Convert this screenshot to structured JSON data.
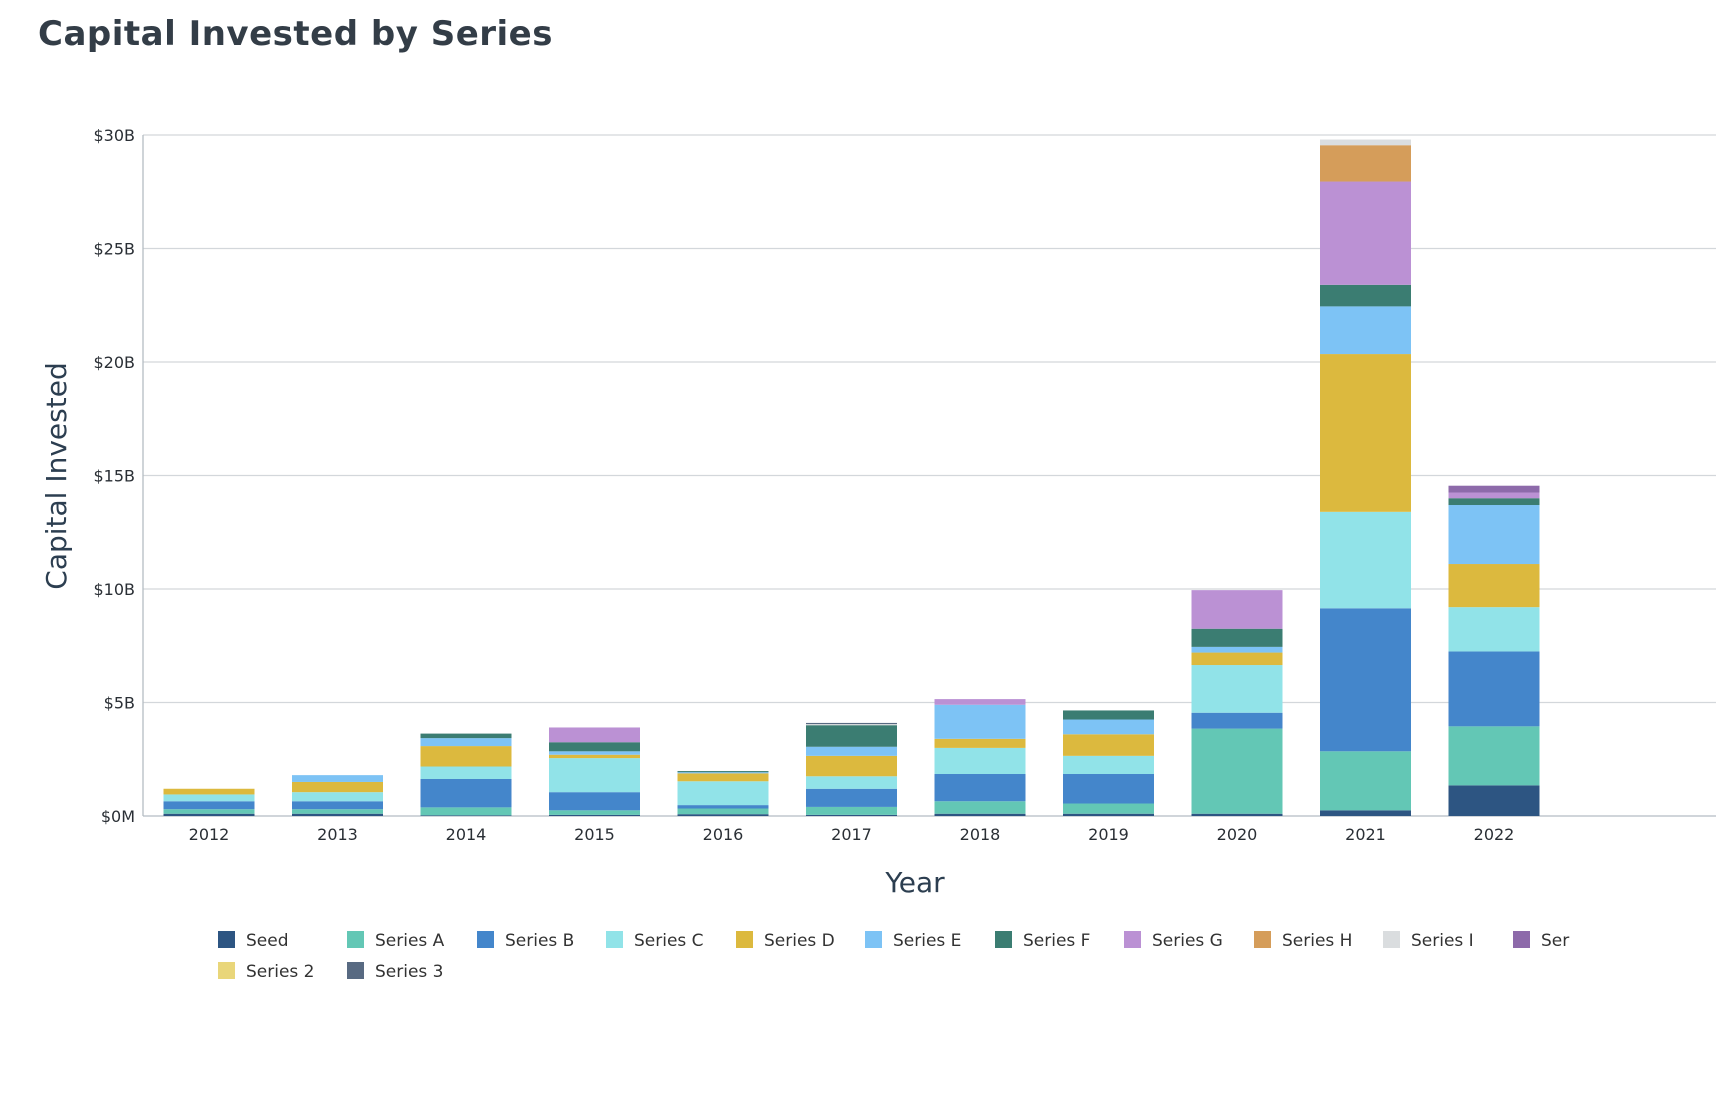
{
  "title": "Capital Invested by Series",
  "chart_data": {
    "type": "bar",
    "stacked": true,
    "title": "Capital Invested by Series",
    "xlabel": "Year",
    "ylabel": "Capital Invested",
    "ylim": [
      0,
      30
    ],
    "y_unit": "billions USD",
    "yticks": [
      {
        "value": 0,
        "label": "$0M"
      },
      {
        "value": 5,
        "label": "$5B"
      },
      {
        "value": 10,
        "label": "$10B"
      },
      {
        "value": 15,
        "label": "$15B"
      },
      {
        "value": 20,
        "label": "$20B"
      },
      {
        "value": 25,
        "label": "$25B"
      },
      {
        "value": 30,
        "label": "$30B"
      }
    ],
    "grid": true,
    "legend_position": "bottom",
    "categories": [
      "2012",
      "2013",
      "2014",
      "2015",
      "2016",
      "2017",
      "2018",
      "2019",
      "2020",
      "2021",
      "2022"
    ],
    "series": [
      {
        "name": "Seed",
        "color": "#2d5582",
        "values": [
          0.1,
          0.1,
          0.03,
          0.05,
          0.08,
          0.05,
          0.1,
          0.1,
          0.1,
          0.25,
          1.35
        ]
      },
      {
        "name": "Series A",
        "color": "#63c7b5",
        "values": [
          0.2,
          0.2,
          0.35,
          0.2,
          0.25,
          0.35,
          0.55,
          0.45,
          3.75,
          2.6,
          2.6
        ]
      },
      {
        "name": "Series B",
        "color": "#4486cb",
        "values": [
          0.35,
          0.35,
          1.25,
          0.8,
          0.15,
          0.8,
          1.2,
          1.3,
          0.7,
          6.3,
          3.3
        ]
      },
      {
        "name": "Series C",
        "color": "#91e3e8",
        "values": [
          0.3,
          0.4,
          0.55,
          1.5,
          1.05,
          0.55,
          1.15,
          0.8,
          2.1,
          4.25,
          1.95
        ]
      },
      {
        "name": "Series D",
        "color": "#dcb93e",
        "values": [
          0.25,
          0.45,
          0.9,
          0.15,
          0.35,
          0.9,
          0.4,
          0.95,
          0.55,
          6.95,
          1.9
        ]
      },
      {
        "name": "Series E",
        "color": "#7dc3f5",
        "values": [
          0.0,
          0.3,
          0.35,
          0.15,
          0.05,
          0.4,
          1.5,
          0.65,
          0.25,
          2.1,
          2.6
        ]
      },
      {
        "name": "Series F",
        "color": "#3b7d72",
        "values": [
          0.0,
          0.0,
          0.2,
          0.4,
          0.05,
          0.95,
          0.0,
          0.4,
          0.8,
          0.95,
          0.3
        ]
      },
      {
        "name": "Series G",
        "color": "#bb91d4",
        "values": [
          0.0,
          0.0,
          0.0,
          0.65,
          0.0,
          0.0,
          0.25,
          0.0,
          1.7,
          4.55,
          0.25
        ]
      },
      {
        "name": "Series H",
        "color": "#d59d5a",
        "values": [
          0.0,
          0.0,
          0.0,
          0.0,
          0.0,
          0.0,
          0.0,
          0.0,
          0.0,
          1.6,
          0.0
        ]
      },
      {
        "name": "Series I",
        "color": "#dadddf",
        "values": [
          0.0,
          0.0,
          0.0,
          0.0,
          0.0,
          0.05,
          0.0,
          0.0,
          0.0,
          0.25,
          0.0
        ]
      },
      {
        "name": "Ser",
        "color": "#8d6aaa",
        "values": [
          0.0,
          0.0,
          0.0,
          0.0,
          0.0,
          0.0,
          0.0,
          0.0,
          0.0,
          0.0,
          0.3
        ]
      },
      {
        "name": "Series 2",
        "color": "#e9d67a",
        "values": [
          0.0,
          0.0,
          0.0,
          0.0,
          0.0,
          0.0,
          0.0,
          0.0,
          0.0,
          0.0,
          0.0
        ]
      },
      {
        "name": "Series 3",
        "color": "#586a82",
        "values": [
          0.0,
          0.0,
          0.0,
          0.0,
          0.0,
          0.05,
          0.0,
          0.0,
          0.0,
          0.0,
          0.0
        ]
      }
    ]
  }
}
